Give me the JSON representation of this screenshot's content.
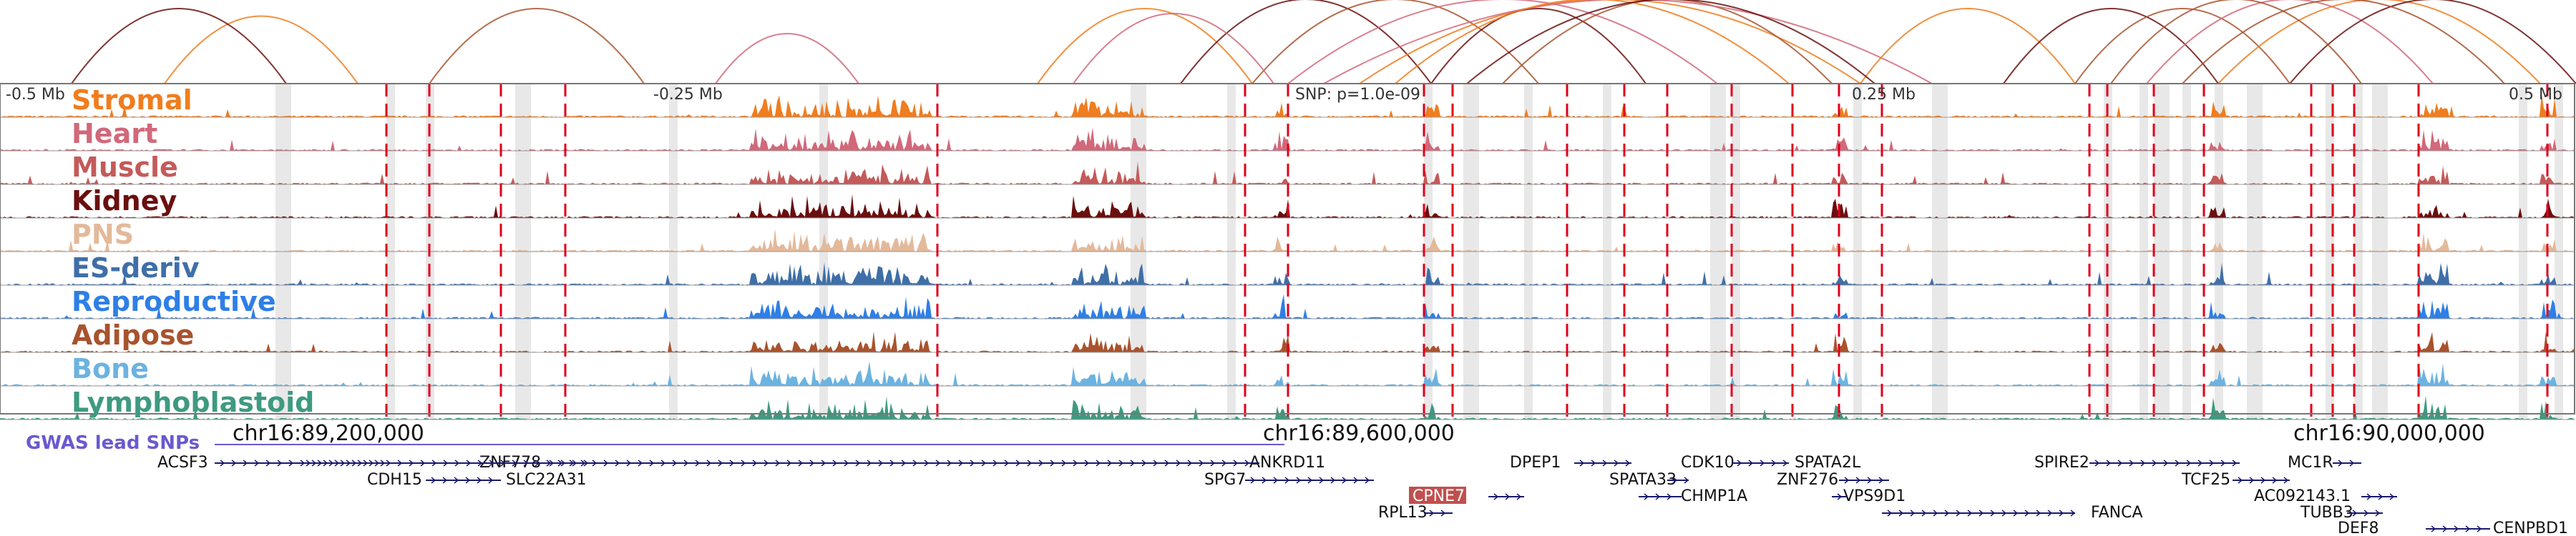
{
  "colors": {
    "frame": "#777777",
    "snp_line": "#e0001a",
    "highlight": "#d6d6d6",
    "gene": "#1a1a6e",
    "gwas": "#6a5acd",
    "highlight_gene_bg": "#c0504d"
  },
  "scale_labels": {
    "left": "-0.5 Mb",
    "mid_left": "-0.25 Mb",
    "center": "SNP: p=1.0e-09",
    "mid_right": "0.25 Mb",
    "right": "0.5 Mb"
  },
  "tracks": [
    {
      "label": "Stromal",
      "color": "#f07d1e"
    },
    {
      "label": "Heart",
      "color": "#d2687a"
    },
    {
      "label": "Muscle",
      "color": "#c45a5a"
    },
    {
      "label": "Kidney",
      "color": "#6a0f0f"
    },
    {
      "label": "PNS",
      "color": "#e3b99a"
    },
    {
      "label": "ES-deriv",
      "color": "#3f6fa8"
    },
    {
      "label": "Reproductive",
      "color": "#2e7fe6"
    },
    {
      "label": "Adipose",
      "color": "#a8532e"
    },
    {
      "label": "Bone",
      "color": "#6cb3e0"
    },
    {
      "label": "Lymphoblastoid",
      "color": "#3e9a80"
    }
  ],
  "gwas_label": "GWAS lead SNPs",
  "coordinates": [
    "chr16:89,200,000",
    "chr16:89,600,000",
    "chr16:90,000,000"
  ],
  "genes": [
    {
      "name": "ACSF3",
      "strand": "+"
    },
    {
      "name": "CDH15",
      "strand": "+"
    },
    {
      "name": "ZNF778",
      "strand": "+"
    },
    {
      "name": "SLC22A31",
      "strand": "-"
    },
    {
      "name": "ANKRD11",
      "strand": "-"
    },
    {
      "name": "SPG7",
      "strand": "+"
    },
    {
      "name": "CPNE7",
      "strand": "+",
      "highlight": true
    },
    {
      "name": "RPL13",
      "strand": "+"
    },
    {
      "name": "DPEP1",
      "strand": "+"
    },
    {
      "name": "SPATA33",
      "strand": "+"
    },
    {
      "name": "CHMP1A",
      "strand": "-"
    },
    {
      "name": "CDK10",
      "strand": "+"
    },
    {
      "name": "SPATA2L",
      "strand": "-"
    },
    {
      "name": "ZNF276",
      "strand": "+"
    },
    {
      "name": "VPS9D1",
      "strand": "-"
    },
    {
      "name": "FANCA",
      "strand": "-"
    },
    {
      "name": "SPIRE2",
      "strand": "+"
    },
    {
      "name": "TCF25",
      "strand": "+"
    },
    {
      "name": "MC1R",
      "strand": "+"
    },
    {
      "name": "AC092143.1",
      "strand": "+"
    },
    {
      "name": "TUBB3",
      "strand": "+"
    },
    {
      "name": "DEF8",
      "strand": "+"
    },
    {
      "name": "CENPBD1",
      "strand": "-"
    }
  ],
  "arc_colors": [
    "#f07d1e",
    "#6a0f0f",
    "#a8532e",
    "#d2687a"
  ]
}
